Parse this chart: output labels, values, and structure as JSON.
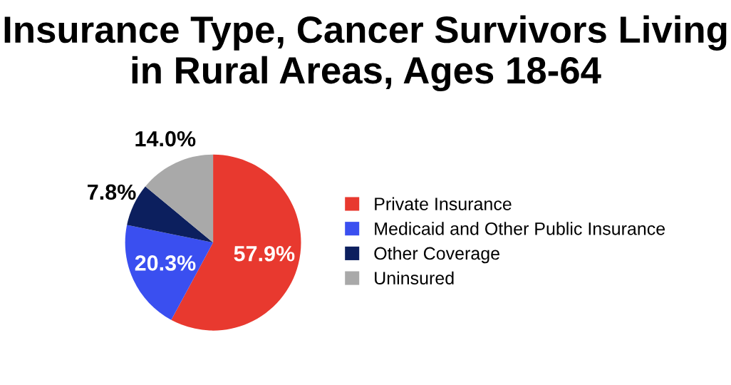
{
  "chart_data": {
    "type": "pie",
    "title": "Insurance Type, Cancer Survivors Living in Rural Areas, Ages 18-64",
    "categories": [
      "Private Insurance",
      "Medicaid and Other Public Insurance",
      "Other Coverage",
      "Uninsured"
    ],
    "values": [
      57.9,
      20.3,
      7.8,
      14.0
    ],
    "value_labels": [
      "57.9%",
      "20.3%",
      "7.8%",
      "14.0%"
    ],
    "colors": [
      "#e8392f",
      "#3a4ff0",
      "#0c1f5e",
      "#a9a9a9"
    ],
    "legend": "right"
  }
}
